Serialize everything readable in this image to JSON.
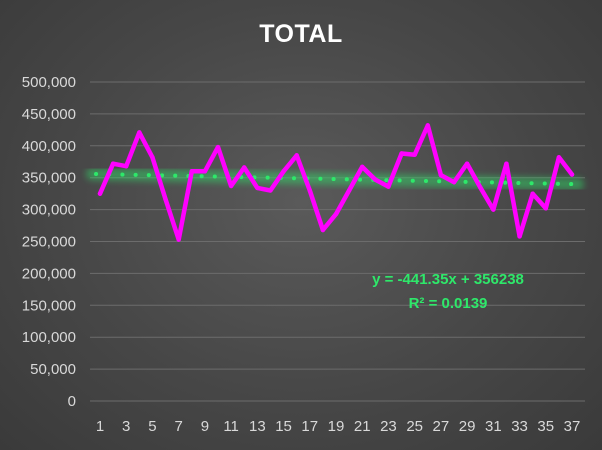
{
  "chart_data": {
    "type": "line",
    "title": "TOTAL",
    "xlabel": "",
    "ylabel": "",
    "x": [
      1,
      2,
      3,
      4,
      5,
      6,
      7,
      8,
      9,
      10,
      11,
      12,
      13,
      14,
      15,
      16,
      17,
      18,
      19,
      20,
      21,
      22,
      23,
      24,
      25,
      26,
      27,
      28,
      29,
      30,
      31,
      32,
      33,
      34,
      35,
      36,
      37
    ],
    "x_tick_labels": [
      "1",
      "3",
      "5",
      "7",
      "9",
      "11",
      "13",
      "15",
      "17",
      "19",
      "21",
      "23",
      "25",
      "27",
      "29",
      "31",
      "33",
      "35",
      "37"
    ],
    "y_tick_labels": [
      "0",
      "50,000",
      "100,000",
      "150,000",
      "200,000",
      "250,000",
      "300,000",
      "350,000",
      "400,000",
      "450,000",
      "500,000"
    ],
    "ylim": [
      0,
      500000
    ],
    "grid": true,
    "series": [
      {
        "values": [
          325000,
          372000,
          368000,
          421000,
          382000,
          316000,
          253000,
          360000,
          360000,
          398000,
          337000,
          366000,
          334000,
          330000,
          360000,
          385000,
          330000,
          268000,
          293000,
          330000,
          367000,
          347000,
          336000,
          388000,
          386000,
          432000,
          354000,
          343000,
          372000,
          335000,
          300000,
          372000,
          258000,
          325000,
          302000,
          382000,
          355000
        ],
        "color": "#ff00ff"
      }
    ],
    "trendline": {
      "type": "linear",
      "slope": -441.35,
      "intercept": 356238,
      "color": "#2ee86a",
      "equation_label": "y = -441.35x + 356238",
      "r2_label": "R² = 0.0139"
    }
  }
}
